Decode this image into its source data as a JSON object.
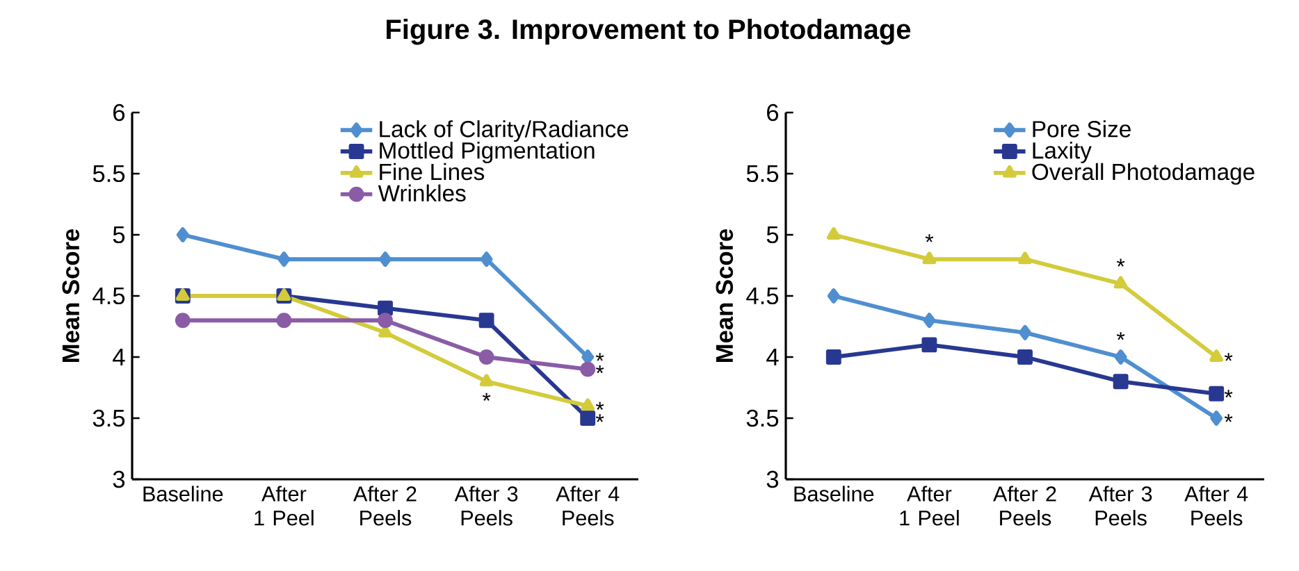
{
  "chart_data": [
    {
      "type": "line",
      "title": "Figure 3. Improvement to Photodamage",
      "ylabel": "Mean Score",
      "categories": [
        "Baseline",
        "After 1 Peel",
        "After 2 Peels",
        "After 3 Peels",
        "After 4 Peels"
      ],
      "series": [
        {
          "name": "Lack of Clarity/Radiance",
          "color": "#4f8fd0",
          "marker": "diamond",
          "values": [
            5.0,
            4.8,
            4.8,
            4.8,
            4.0
          ]
        },
        {
          "name": "Mottled Pigmentation",
          "color": "#283891",
          "marker": "square",
          "values": [
            4.5,
            4.5,
            4.4,
            4.3,
            3.5
          ]
        },
        {
          "name": "Fine Lines",
          "color": "#d3cb3a",
          "marker": "triangle",
          "values": [
            4.5,
            4.5,
            4.2,
            3.8,
            3.6
          ]
        },
        {
          "name": "Wrinkles",
          "color": "#8a5ca6",
          "marker": "circle",
          "values": [
            4.3,
            4.3,
            4.3,
            4.0,
            3.9
          ]
        }
      ],
      "ylim": [
        3,
        6
      ],
      "yticks": [
        3,
        3.5,
        4,
        4.5,
        5,
        5.5,
        6
      ],
      "legend": "top right",
      "annotations": [
        {
          "text": "*",
          "x": "After 4 Peels",
          "y": 4.0
        },
        {
          "text": "*",
          "x": "After 4 Peels",
          "y": 3.9
        },
        {
          "text": "*",
          "x": "After 4 Peels",
          "y": 3.6
        },
        {
          "text": "*",
          "x": "After 4 Peels",
          "y": 3.5
        },
        {
          "text": "*",
          "x": "After 3 Peels",
          "y": 3.8
        }
      ]
    },
    {
      "type": "line",
      "ylabel": "Mean Score",
      "categories": [
        "Baseline",
        "After 1 Peel",
        "After 2 Peels",
        "After 3 Peels",
        "After 4 Peels"
      ],
      "series": [
        {
          "name": "Pore Size",
          "color": "#4f8fd0",
          "marker": "diamond",
          "values": [
            4.5,
            4.3,
            4.2,
            4.0,
            3.5
          ]
        },
        {
          "name": "Laxity",
          "color": "#283891",
          "marker": "square",
          "values": [
            4.0,
            4.1,
            4.0,
            3.8,
            3.7
          ]
        },
        {
          "name": "Overall Photodamage",
          "color": "#d3cb3a",
          "marker": "triangle",
          "values": [
            5.0,
            4.8,
            4.8,
            4.6,
            4.0
          ]
        }
      ],
      "ylim": [
        3,
        6
      ],
      "yticks": [
        3,
        3.5,
        4,
        4.5,
        5,
        5.5,
        6
      ],
      "legend": "top right",
      "annotations": [
        {
          "text": "*",
          "x": "After 1 Peel",
          "y": 4.8
        },
        {
          "text": "*",
          "x": "After 3 Peels",
          "y": 4.6
        },
        {
          "text": "*",
          "x": "After 3 Peels",
          "y": 4.0
        },
        {
          "text": "*",
          "x": "After 4 Peels",
          "y": 4.0
        },
        {
          "text": "*",
          "x": "After 4 Peels",
          "y": 3.7
        },
        {
          "text": "*",
          "x": "After 4 Peels",
          "y": 3.5
        }
      ]
    }
  ]
}
